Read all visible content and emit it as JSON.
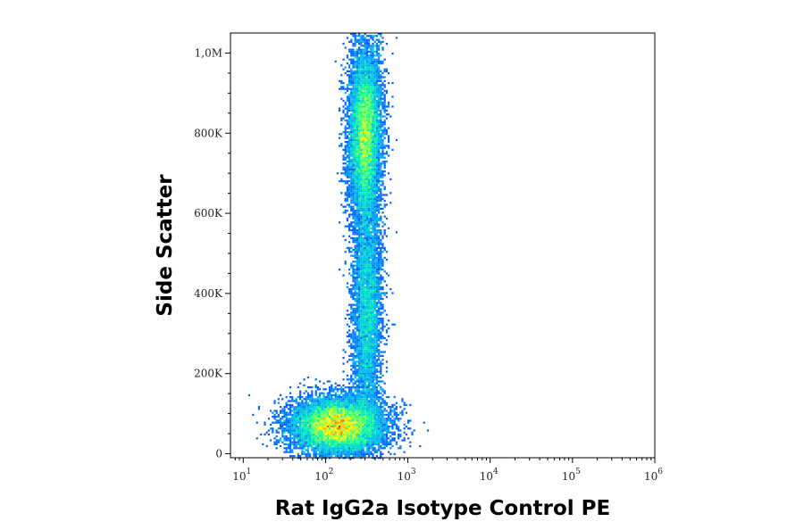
{
  "chart_data": {
    "type": "scatter",
    "subtype": "flow-cytometry-density-dot-plot",
    "title": "",
    "xlabel": "Rat IgG2a Isotype Control PE",
    "ylabel": "Side Scatter",
    "x_scale": "log",
    "xlim": [
      7,
      1000000
    ],
    "ylim": [
      -10000,
      1050000
    ],
    "x_ticks": [
      {
        "value": 10,
        "base": "10",
        "exp": "1"
      },
      {
        "value": 100,
        "base": "10",
        "exp": "2"
      },
      {
        "value": 1000,
        "base": "10",
        "exp": "3"
      },
      {
        "value": 10000,
        "base": "10",
        "exp": "4"
      },
      {
        "value": 100000,
        "base": "10",
        "exp": "5"
      },
      {
        "value": 1000000,
        "base": "10",
        "exp": "6"
      }
    ],
    "y_ticks": [
      {
        "value": 0,
        "label": "0"
      },
      {
        "value": 200000,
        "label": "200K"
      },
      {
        "value": 400000,
        "label": "400K"
      },
      {
        "value": 600000,
        "label": "600K"
      },
      {
        "value": 800000,
        "label": "800K"
      },
      {
        "value": 1000000,
        "label": "1,0M"
      }
    ],
    "grid": false,
    "color_scale": [
      "#0000ff",
      "#00a8ff",
      "#00ffa0",
      "#ffff00",
      "#ff2000"
    ],
    "populations": [
      {
        "x_median": 140,
        "y_center": 70000,
        "x_log_sd": 0.28,
        "y_sd": 35000,
        "weight": 0.45,
        "peak": "red"
      },
      {
        "x_median": 300,
        "y_center": 800000,
        "x_log_sd": 0.1,
        "y_sd": 110000,
        "weight": 0.35,
        "peak": "yellow-green"
      },
      {
        "x_median": 320,
        "y_center": 350000,
        "x_log_sd": 0.09,
        "y_sd": 160000,
        "weight": 0.2,
        "peak": "blue"
      }
    ]
  }
}
